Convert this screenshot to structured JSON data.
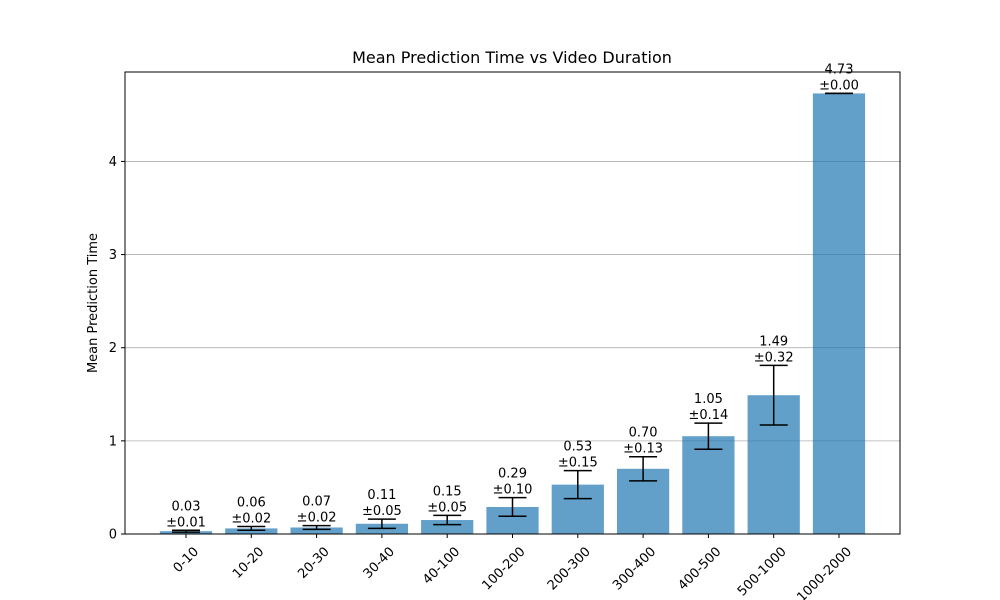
{
  "chart_data": {
    "type": "bar",
    "title": "Mean Prediction Time vs Video Duration",
    "xlabel": "",
    "ylabel": "Mean Prediction Time",
    "categories": [
      "0-10",
      "10-20",
      "20-30",
      "30-40",
      "40-100",
      "100-200",
      "200-300",
      "300-400",
      "400-500",
      "500-1000",
      "1000-2000"
    ],
    "values": [
      0.03,
      0.06,
      0.07,
      0.11,
      0.15,
      0.29,
      0.53,
      0.7,
      1.05,
      1.49,
      4.73
    ],
    "errors": [
      0.01,
      0.02,
      0.02,
      0.05,
      0.05,
      0.1,
      0.15,
      0.13,
      0.14,
      0.32,
      0.0
    ],
    "value_labels": [
      "0.03",
      "0.06",
      "0.07",
      "0.11",
      "0.15",
      "0.29",
      "0.53",
      "0.70",
      "1.05",
      "1.49",
      "4.73"
    ],
    "error_labels": [
      "±0.01",
      "±0.02",
      "±0.02",
      "±0.05",
      "±0.05",
      "±0.10",
      "±0.15",
      "±0.13",
      "±0.14",
      "±0.32",
      "±0.00"
    ],
    "ylim": [
      0,
      4.96
    ],
    "yticks": [
      0,
      1,
      2,
      3,
      4
    ],
    "grid": "y",
    "legend": "none",
    "bar_color": "#1f77b4"
  }
}
